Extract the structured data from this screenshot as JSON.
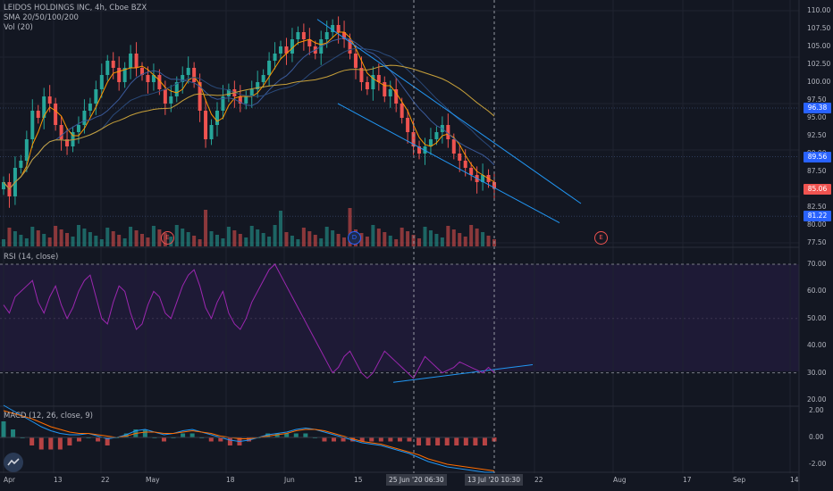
{
  "symbol_line": "LEIDOS HOLDINGS INC, 4h, Cboe BZX",
  "sma_label": "SMA 20/50/100/200",
  "vol_label": "Vol (20)",
  "rsi_label": "RSI (14, close)",
  "macd_label": "MACD (12, 26, close, 9)",
  "price_axis": [
    "110.00",
    "107.50",
    "105.00",
    "102.50",
    "100.00",
    "97.50",
    "95.00",
    "92.50",
    "90.00",
    "87.50",
    "85.00",
    "82.50",
    "80.00",
    "77.50"
  ],
  "rsi_axis": [
    "70.00",
    "60.00",
    "50.00",
    "40.00",
    "30.00",
    "20.00"
  ],
  "macd_axis": [
    "2.00",
    "0.00",
    "-2.00"
  ],
  "price_tags": [
    {
      "text": "96.38",
      "color": "#2962ff"
    },
    {
      "text": "89.56",
      "color": "#2962ff"
    },
    {
      "text": "85.06",
      "color": "#ef5350"
    },
    {
      "text": "81.22",
      "color": "#2962ff"
    }
  ],
  "dates": [
    "Apr",
    "13",
    "22",
    "May",
    "18",
    "Jun",
    "15",
    "22",
    "Aug",
    "17",
    "Sep",
    "14"
  ],
  "date_badges": [
    "25 Jun '20   06:30",
    "13 Jul '20   10:30"
  ],
  "events": [
    "E",
    "D",
    "E"
  ],
  "colors": {
    "up": "#26a69a",
    "down": "#ef5350",
    "rsi": "#9c27b0",
    "trend": "#2196f3",
    "sma20": "#ff9800",
    "sma50": "#3a5a9a",
    "sma100": "#2a4a7a",
    "sma200": "#c8a13a"
  },
  "chart_data": {
    "type": "candlestick",
    "title": "LEIDOS HOLDINGS INC, 4h, Cboe BZX",
    "close": [
      86,
      84,
      88,
      89,
      92,
      96,
      95,
      98,
      97,
      94,
      92,
      91,
      93,
      94,
      96,
      97,
      99,
      101,
      103,
      102,
      100,
      102,
      104,
      102,
      101,
      100,
      101,
      99,
      97,
      98,
      100,
      101,
      102,
      100,
      96,
      92,
      94,
      96,
      98,
      99,
      98,
      97,
      98,
      99,
      100,
      101,
      103,
      104,
      105,
      104,
      106,
      107,
      106,
      105,
      104,
      106,
      107,
      108,
      107,
      106,
      104,
      102,
      100,
      99,
      101,
      100,
      98,
      99,
      97,
      95,
      93,
      91,
      90,
      91,
      92,
      93,
      94,
      92,
      90,
      89,
      88,
      87,
      86,
      87,
      86,
      85.06
    ],
    "rsi": [
      55,
      52,
      58,
      60,
      62,
      64,
      56,
      52,
      58,
      62,
      55,
      50,
      54,
      60,
      64,
      66,
      58,
      50,
      48,
      56,
      62,
      60,
      52,
      46,
      48,
      55,
      60,
      58,
      52,
      50,
      56,
      62,
      66,
      68,
      62,
      54,
      50,
      56,
      60,
      52,
      48,
      46,
      50,
      56,
      60,
      64,
      68,
      70,
      66,
      62,
      58,
      54,
      50,
      46,
      42,
      38,
      34,
      30,
      32,
      36,
      38,
      34,
      30,
      28,
      30,
      34,
      38,
      36,
      34,
      32,
      30,
      28,
      32,
      36,
      34,
      32,
      30,
      31,
      32,
      34,
      33,
      32,
      31,
      30,
      32,
      30
    ],
    "macd": [
      2.4,
      2.0,
      1.6,
      1.2,
      0.8,
      0.5,
      0.3,
      0.2,
      0.2,
      0.3,
      0.1,
      -0.1,
      0.0,
      0.2,
      0.5,
      0.6,
      0.4,
      0.2,
      0.3,
      0.5,
      0.6,
      0.4,
      0.2,
      0.0,
      -0.2,
      -0.3,
      -0.2,
      0.0,
      0.2,
      0.3,
      0.4,
      0.6,
      0.7,
      0.6,
      0.4,
      0.2,
      0.0,
      -0.2,
      -0.4,
      -0.5,
      -0.6,
      -0.8,
      -1.0,
      -1.2,
      -1.5,
      -1.8,
      -2.0,
      -2.2,
      -2.3,
      -2.4,
      -2.5,
      -2.6,
      -2.6
    ],
    "signal": [
      2.0,
      1.8,
      1.6,
      1.4,
      1.1,
      0.8,
      0.6,
      0.4,
      0.3,
      0.3,
      0.2,
      0.1,
      0.0,
      0.1,
      0.3,
      0.4,
      0.4,
      0.3,
      0.3,
      0.4,
      0.5,
      0.4,
      0.3,
      0.1,
      0.0,
      -0.1,
      -0.1,
      0.0,
      0.1,
      0.2,
      0.3,
      0.5,
      0.6,
      0.6,
      0.5,
      0.3,
      0.1,
      -0.1,
      -0.3,
      -0.4,
      -0.5,
      -0.7,
      -0.9,
      -1.1,
      -1.3,
      -1.6,
      -1.8,
      -2.0,
      -2.1,
      -2.2,
      -2.3,
      -2.4,
      -2.5
    ]
  }
}
